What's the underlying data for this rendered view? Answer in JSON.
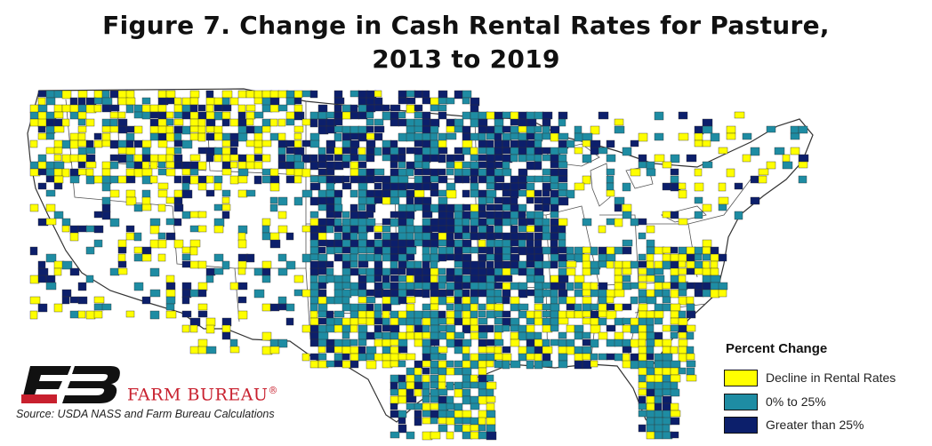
{
  "title_line1": "Figure 7. Change in Cash Rental Rates for Pasture,",
  "title_line2": "2013 to 2019",
  "legend": {
    "title": "Percent Change",
    "items": [
      {
        "label": "Decline in Rental Rates",
        "color": "#ffff00"
      },
      {
        "label": "0% to 25%",
        "color": "#1e8ca3"
      },
      {
        "label": "Greater than 25%",
        "color": "#0c1f6b"
      }
    ]
  },
  "logo": {
    "name": "FARM BUREAU",
    "mark": "®",
    "brand_color": "#c8202e",
    "icon": "farm-bureau-logo"
  },
  "source": "Source: USDA NASS and Farm Bureau Calculations"
}
